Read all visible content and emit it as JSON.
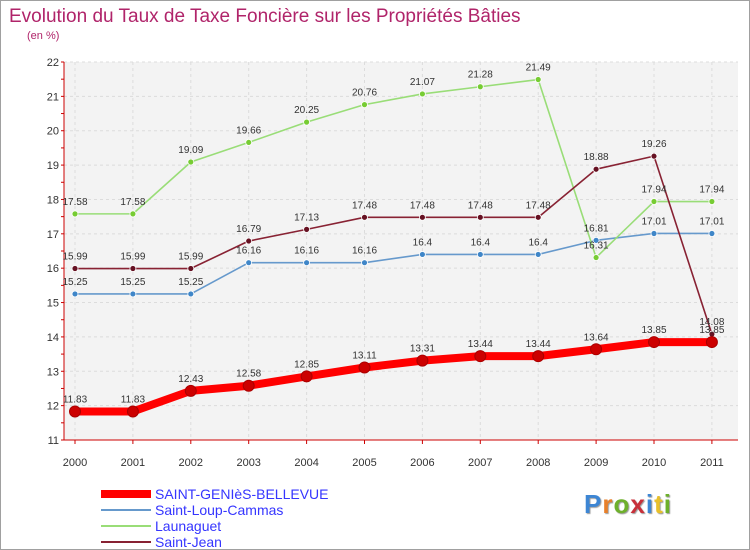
{
  "title": "Evolution du Taux de Taxe Foncière sur les Propriétés Bâties",
  "subtitle": "(en %)",
  "logo": {
    "text": "Proxiti",
    "letter_colors": [
      "#3d86d4",
      "#e8802a",
      "#6eb02c",
      "#c8303a",
      "#3d86d4",
      "#e8c02a",
      "#6eb02c"
    ]
  },
  "chart_data": {
    "type": "line",
    "x": [
      "2000",
      "2001",
      "2002",
      "2003",
      "2004",
      "2005",
      "2006",
      "2007",
      "2008",
      "2009",
      "2010",
      "2011"
    ],
    "ylim": [
      11,
      22
    ],
    "yticks": [
      "11",
      "12",
      "13",
      "14",
      "15",
      "16",
      "17",
      "18",
      "19",
      "20",
      "21",
      "22"
    ],
    "grid": true,
    "legend_position": "bottom-left",
    "series": [
      {
        "name": "SAINT-GENIèS-BELLEVUE",
        "color": "#ff0000",
        "marker_color": "#cc0000",
        "values": [
          11.83,
          11.83,
          12.43,
          12.58,
          12.85,
          13.11,
          13.31,
          13.44,
          13.44,
          13.64,
          13.85,
          13.85
        ],
        "labels": [
          "11.83",
          "11.83",
          "12.43",
          "12.58",
          "12.85",
          "13.11",
          "13.31",
          "13.44",
          "13.44",
          "13.64",
          "13.85",
          "13.85"
        ],
        "bold": true
      },
      {
        "name": "Saint-Loup-Cammas",
        "color": "#6699cc",
        "marker_color": "#3f86c8",
        "values": [
          15.25,
          15.25,
          15.25,
          16.16,
          16.16,
          16.16,
          16.4,
          16.4,
          16.4,
          16.81,
          17.01,
          17.01
        ],
        "labels": [
          "15.25",
          "15.25",
          "15.25",
          "16.16",
          "16.16",
          "16.16",
          "16.4",
          "16.4",
          "16.4",
          "16.81",
          "17.01",
          "17.01"
        ],
        "bold": false
      },
      {
        "name": "Launaguet",
        "color": "#99dd77",
        "marker_color": "#77cc33",
        "values": [
          17.58,
          17.58,
          19.09,
          19.66,
          20.25,
          20.76,
          21.07,
          21.28,
          21.49,
          16.31,
          17.94,
          17.94
        ],
        "labels": [
          "17.58",
          "17.58",
          "19.09",
          "19.66",
          "20.25",
          "20.76",
          "21.07",
          "21.28",
          "21.49",
          "16.31",
          "17.94",
          "17.94"
        ],
        "bold": false
      },
      {
        "name": "Saint-Jean",
        "color": "#882233",
        "marker_color": "#661122",
        "values": [
          15.99,
          15.99,
          15.99,
          16.79,
          17.13,
          17.48,
          17.48,
          17.48,
          17.48,
          18.88,
          19.26,
          14.08
        ],
        "labels": [
          "15.99",
          "15.99",
          "15.99",
          "16.79",
          "17.13",
          "17.48",
          "17.48",
          "17.48",
          "17.48",
          "18.88",
          "19.26",
          "14.08"
        ],
        "bold": false
      }
    ]
  }
}
